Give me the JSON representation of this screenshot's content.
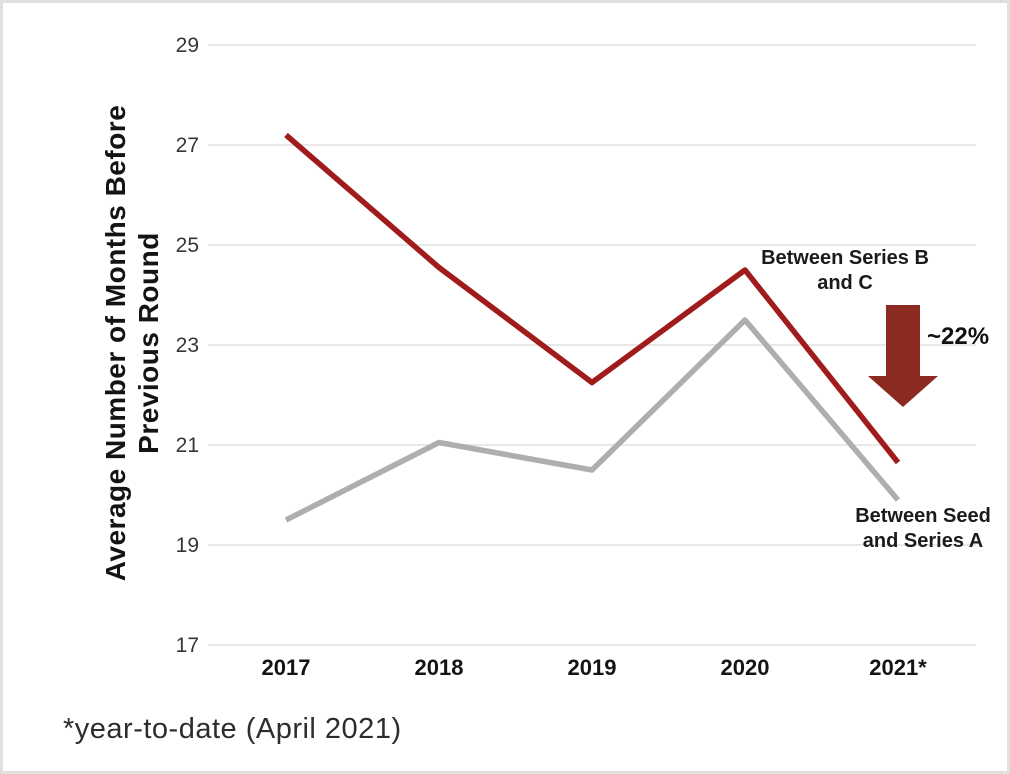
{
  "chart_data": {
    "type": "line",
    "title": "",
    "ylabel_line1": "Average Number of Months Before",
    "ylabel_line2": "Previous Round",
    "categories": [
      "2017",
      "2018",
      "2019",
      "2020",
      "2021*"
    ],
    "series": [
      {
        "name": "Between Series B and C",
        "color": "#a01b1b",
        "values": [
          27.2,
          24.55,
          22.25,
          24.5,
          20.65
        ]
      },
      {
        "name": "Between Seed and Series A",
        "color": "#aeaeae",
        "values": [
          19.5,
          21.05,
          20.5,
          23.5,
          19.9
        ]
      }
    ],
    "ylim": [
      17,
      29
    ],
    "yticks": [
      29,
      27,
      25,
      23,
      21,
      19,
      17
    ],
    "grid": true,
    "legend_position": "inline annotations at right of lines"
  },
  "annotations": {
    "series_b_line1": "Between Series B",
    "series_b_line2": "and C",
    "seed_line1": "Between Seed",
    "seed_line2": "and Series A",
    "drop_label": "~22%"
  },
  "footnote": "*year-to-date (April 2021)",
  "colors": {
    "background": "#ffffff",
    "frame_border": "#e0e0e0",
    "gridline": "#e8e8e8",
    "red_line": "#a01b1b",
    "gray_line": "#aeaeae",
    "arrow": "#8b2a21",
    "tick_text": "#363636",
    "label_text": "#1b1b1b"
  }
}
